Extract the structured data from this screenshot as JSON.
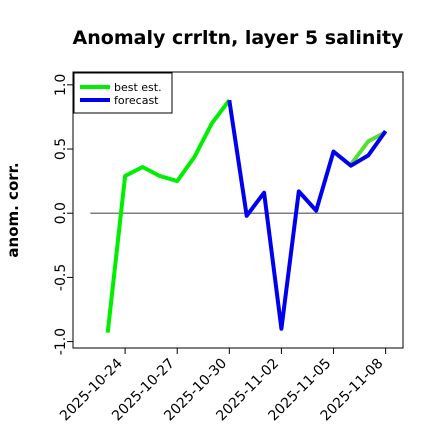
{
  "chart_data": {
    "type": "line",
    "title": "Anomaly crrltn, layer 5 salinity",
    "xlabel": "",
    "ylabel": "anom. corr.",
    "ylim": [
      -1.05,
      1.1
    ],
    "yticks": [
      -1.0,
      -0.5,
      0.0,
      0.5,
      1.0
    ],
    "ytick_labels": [
      "-1.0",
      "-0.5",
      "0.0",
      "0.5",
      "1.0"
    ],
    "x_range": [
      "2025-10-21",
      "2025-11-09"
    ],
    "xticks": [
      "2025-10-24",
      "2025-10-27",
      "2025-10-30",
      "2025-11-02",
      "2025-11-05",
      "2025-11-08"
    ],
    "xtick_colors": [
      "#000000",
      "#000000",
      "#228b22",
      "#000000",
      "#000000",
      "#000000"
    ],
    "reference_line": {
      "y": 0.0,
      "x_start": "2025-10-22",
      "x_end": "2025-11-09",
      "color": "#555555"
    },
    "legend": "top-left",
    "grid": false,
    "series": [
      {
        "name": "best est.",
        "color": "#00ee00",
        "x": [
          "2025-10-23",
          "2025-10-24",
          "2025-10-25",
          "2025-10-26",
          "2025-10-27",
          "2025-10-28",
          "2025-10-29",
          "2025-10-30"
        ],
        "values": [
          -0.93,
          0.29,
          0.36,
          0.29,
          0.25,
          0.44,
          0.7,
          0.88
        ]
      },
      {
        "name": "forecast",
        "color": "#0000ee",
        "x": [
          "2025-10-30",
          "2025-10-31",
          "2025-11-01",
          "2025-11-02",
          "2025-11-03",
          "2025-11-04",
          "2025-11-05",
          "2025-11-06",
          "2025-11-07",
          "2025-11-08"
        ],
        "values": [
          0.88,
          -0.02,
          0.16,
          -0.9,
          0.17,
          0.02,
          0.48,
          0.37,
          0.45,
          0.64
        ]
      },
      {
        "name": "",
        "color": "#55dd33",
        "x": [
          "2025-11-06",
          "2025-11-07",
          "2025-11-08"
        ],
        "values": [
          0.38,
          0.56,
          0.63
        ]
      }
    ]
  }
}
